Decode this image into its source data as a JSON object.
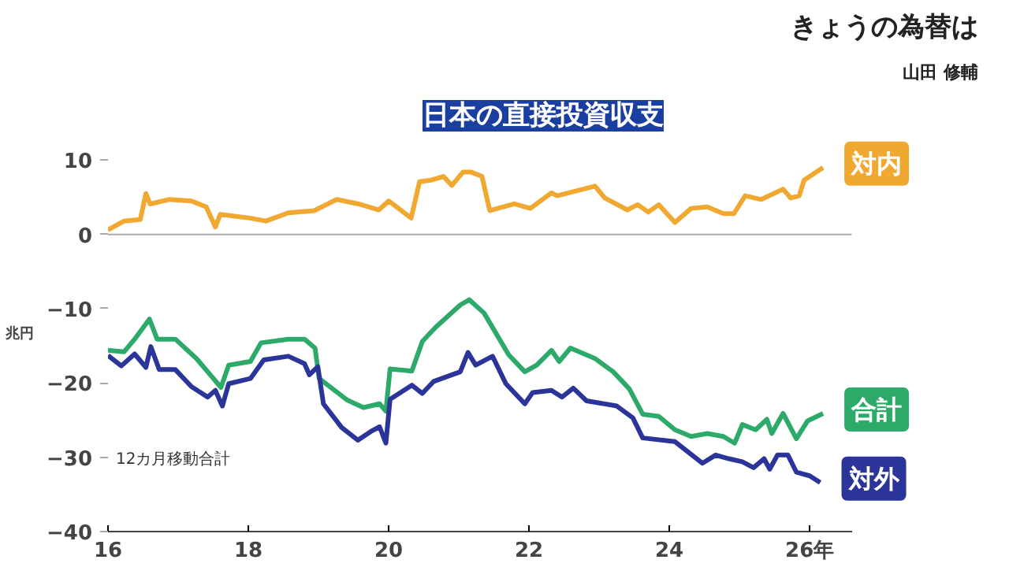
{
  "chart_data": {
    "type": "line",
    "title": "日本の直接投資収支",
    "subtitle": "きょうの為替は",
    "ylabel": "兆円",
    "annotations": [
      "山田 修輔",
      "12カ月移動合計"
    ],
    "xlim": [
      16,
      26.6
    ],
    "xticks": [
      16,
      18,
      20,
      22,
      24,
      {
        "value": 26,
        "label": "26年"
      }
    ],
    "ylim": [
      -40,
      10
    ],
    "yticks": [
      -40,
      -30,
      -20,
      -10,
      0,
      10
    ],
    "ref_lines": [
      {
        "axis": "y",
        "value": 0,
        "color": "#aaaaaa"
      }
    ],
    "grid": false,
    "marker": "none",
    "line_style": "solid",
    "series": [
      {
        "name": "対内",
        "color": "#f0a830",
        "x": [
          16.0,
          16.23,
          16.46,
          16.54,
          16.6,
          16.87,
          17.19,
          17.4,
          17.53,
          17.6,
          18.02,
          18.25,
          18.57,
          18.94,
          19.26,
          19.57,
          19.86,
          20.0,
          20.32,
          20.44,
          20.6,
          20.78,
          20.9,
          21.06,
          21.17,
          21.33,
          21.44,
          21.79,
          22.02,
          22.32,
          22.4,
          22.94,
          23.08,
          23.4,
          23.55,
          23.7,
          23.85,
          24.08,
          24.31,
          24.54,
          24.77,
          24.92,
          25.08,
          25.31,
          25.62,
          25.73,
          25.85,
          25.92,
          26.19
        ],
        "values": [
          0.6,
          1.8,
          2.0,
          5.5,
          4.1,
          4.7,
          4.5,
          3.7,
          1.0,
          2.7,
          2.2,
          1.8,
          2.9,
          3.2,
          4.7,
          4.1,
          3.3,
          4.5,
          2.2,
          7.1,
          7.3,
          7.8,
          6.6,
          8.4,
          8.4,
          7.8,
          3.2,
          4.1,
          3.5,
          5.6,
          5.2,
          6.5,
          4.9,
          3.3,
          4.0,
          3.0,
          4.0,
          1.6,
          3.5,
          3.7,
          2.8,
          2.8,
          5.2,
          4.7,
          6.1,
          4.9,
          5.2,
          7.3,
          9.0
        ]
      },
      {
        "name": "合計",
        "color": "#2daa6a",
        "x": [
          16.0,
          16.23,
          16.38,
          16.59,
          16.7,
          16.96,
          17.26,
          17.61,
          17.72,
          18.03,
          18.18,
          18.57,
          18.8,
          18.95,
          19.01,
          19.41,
          19.64,
          19.87,
          19.96,
          20.02,
          20.33,
          20.48,
          20.67,
          21.02,
          21.15,
          21.36,
          21.71,
          21.94,
          22.11,
          22.32,
          22.43,
          22.59,
          22.94,
          23.2,
          23.43,
          23.62,
          23.85,
          24.08,
          24.31,
          24.54,
          24.77,
          24.93,
          25.04,
          25.23,
          25.39,
          25.46,
          25.62,
          25.81,
          25.97,
          26.19
        ],
        "values": [
          -15.6,
          -15.8,
          -14.1,
          -11.4,
          -14.1,
          -14.1,
          -16.7,
          -20.6,
          -17.6,
          -17.1,
          -14.6,
          -14.1,
          -14.1,
          -15.3,
          -19.4,
          -22.3,
          -23.3,
          -22.8,
          -23.8,
          -18.1,
          -18.4,
          -14.4,
          -12.5,
          -9.5,
          -8.8,
          -10.6,
          -16.2,
          -18.5,
          -17.6,
          -15.6,
          -17.1,
          -15.3,
          -16.7,
          -18.5,
          -20.8,
          -24.2,
          -24.5,
          -26.3,
          -27.2,
          -26.8,
          -27.2,
          -28.1,
          -25.6,
          -26.3,
          -24.9,
          -26.8,
          -24.1,
          -27.5,
          -25.1,
          -24.1
        ]
      },
      {
        "name": "対外",
        "color": "#2b3599",
        "x": [
          16.0,
          16.19,
          16.38,
          16.54,
          16.61,
          16.73,
          16.96,
          17.19,
          17.42,
          17.53,
          17.63,
          17.72,
          18.03,
          18.22,
          18.57,
          18.8,
          18.87,
          18.99,
          19.07,
          19.33,
          19.56,
          19.75,
          19.87,
          19.96,
          20.02,
          20.33,
          20.48,
          20.64,
          21.02,
          21.13,
          21.24,
          21.48,
          21.67,
          21.94,
          22.05,
          22.32,
          22.47,
          22.63,
          22.82,
          23.25,
          23.48,
          23.62,
          24.08,
          24.47,
          24.66,
          24.85,
          25.04,
          25.2,
          25.35,
          25.43,
          25.54,
          25.69,
          25.81,
          26.0,
          26.15
        ],
        "values": [
          -16.3,
          -17.7,
          -16.1,
          -17.9,
          -15.1,
          -18.2,
          -18.2,
          -20.5,
          -21.9,
          -21.0,
          -23.1,
          -20.1,
          -19.4,
          -16.9,
          -16.4,
          -17.4,
          -18.9,
          -17.8,
          -22.8,
          -26.0,
          -27.7,
          -26.5,
          -25.9,
          -28.1,
          -22.2,
          -20.3,
          -21.4,
          -19.8,
          -18.5,
          -15.9,
          -17.6,
          -16.4,
          -20.1,
          -22.8,
          -21.3,
          -21.0,
          -21.9,
          -20.7,
          -22.4,
          -23.1,
          -24.7,
          -27.4,
          -27.9,
          -30.8,
          -29.7,
          -30.2,
          -30.6,
          -31.4,
          -30.2,
          -31.6,
          -29.7,
          -29.7,
          -32.0,
          -32.5,
          -33.4
        ]
      }
    ]
  }
}
